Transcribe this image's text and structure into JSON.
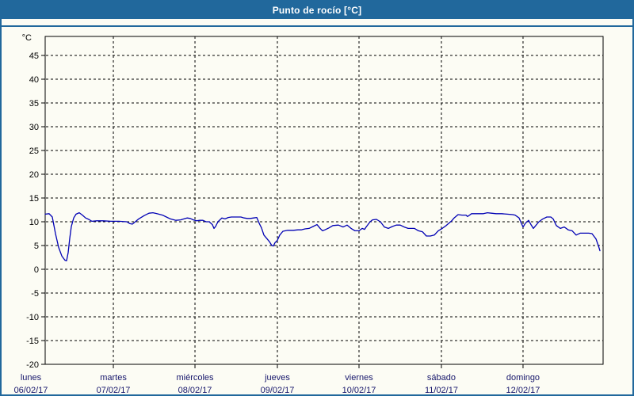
{
  "title_bar": {
    "title": "Punto de rocío [°C]"
  },
  "colors": {
    "accent_blue": "#21689c",
    "line_blue": "#0000b4",
    "grid_color": "#000000",
    "box_color": "#000000",
    "y_label_color": "#000000",
    "x_label_color": "#16166b",
    "title_text": "#ffffff",
    "page_bg": "#fcfcf4"
  },
  "chart_data": {
    "type": "line",
    "title": "Punto de rocío [°C]",
    "ylabel": "°C",
    "unit_label": "°C",
    "ylim": [
      -20,
      49
    ],
    "yticks": [
      45,
      40,
      35,
      30,
      25,
      20,
      15,
      10,
      5,
      0,
      -5,
      -10,
      -15,
      -20
    ],
    "grid": "dashed",
    "legend_position": "none",
    "x_ticks": [
      {
        "pos": -0.0256,
        "weekday": "lunes",
        "date": "06/02/17",
        "gridline": false
      },
      {
        "pos": 0.1222,
        "weekday": "martes",
        "date": "07/02/17",
        "gridline": true
      },
      {
        "pos": 0.2685,
        "weekday": "miércoles",
        "date": "08/02/17",
        "gridline": true
      },
      {
        "pos": 0.4162,
        "weekday": "jueves",
        "date": "09/02/17",
        "gridline": true
      },
      {
        "pos": 0.5625,
        "weekday": "viernes",
        "date": "10/02/17",
        "gridline": true
      },
      {
        "pos": 0.7102,
        "weekday": "sábado",
        "date": "11/02/17",
        "gridline": true
      },
      {
        "pos": 0.8565,
        "weekday": "domingo",
        "date": "12/02/17",
        "gridline": true
      }
    ],
    "series": [
      {
        "name": "Punto de rocío",
        "color": "#0000b4",
        "points": [
          [
            0.0,
            11.6
          ],
          [
            0.0071,
            11.7
          ],
          [
            0.0128,
            11.0
          ],
          [
            0.0185,
            7.5
          ],
          [
            0.0241,
            4.6
          ],
          [
            0.0298,
            2.8
          ],
          [
            0.0355,
            1.9
          ],
          [
            0.0384,
            1.8
          ],
          [
            0.0412,
            3.5
          ],
          [
            0.044,
            6.5
          ],
          [
            0.0469,
            9.0
          ],
          [
            0.0511,
            10.8
          ],
          [
            0.0554,
            11.6
          ],
          [
            0.0611,
            11.9
          ],
          [
            0.0668,
            11.4
          ],
          [
            0.0724,
            10.8
          ],
          [
            0.0781,
            10.5
          ],
          [
            0.0838,
            10.1
          ],
          [
            0.0923,
            10.2
          ],
          [
            0.1037,
            10.2
          ],
          [
            0.1179,
            10.1
          ],
          [
            0.1321,
            10.1
          ],
          [
            0.1463,
            10.0
          ],
          [
            0.152,
            9.6
          ],
          [
            0.1563,
            9.5
          ],
          [
            0.1605,
            9.9
          ],
          [
            0.1676,
            10.6
          ],
          [
            0.1776,
            11.3
          ],
          [
            0.1861,
            11.8
          ],
          [
            0.1932,
            11.9
          ],
          [
            0.2003,
            11.7
          ],
          [
            0.2102,
            11.4
          ],
          [
            0.2173,
            11.0
          ],
          [
            0.2244,
            10.6
          ],
          [
            0.2344,
            10.3
          ],
          [
            0.2429,
            10.4
          ],
          [
            0.2486,
            10.6
          ],
          [
            0.2543,
            10.8
          ],
          [
            0.2599,
            10.7
          ],
          [
            0.2656,
            10.4
          ],
          [
            0.2713,
            10.2
          ],
          [
            0.277,
            10.3
          ],
          [
            0.2827,
            10.3
          ],
          [
            0.2884,
            10.0
          ],
          [
            0.294,
            10.0
          ],
          [
            0.2997,
            9.4
          ],
          [
            0.3026,
            8.6
          ],
          [
            0.3054,
            9.0
          ],
          [
            0.3097,
            10.0
          ],
          [
            0.3168,
            10.8
          ],
          [
            0.3224,
            10.6
          ],
          [
            0.3281,
            10.9
          ],
          [
            0.3338,
            11.0
          ],
          [
            0.3423,
            11.0
          ],
          [
            0.3509,
            11.0
          ],
          [
            0.3565,
            10.8
          ],
          [
            0.3622,
            10.7
          ],
          [
            0.3679,
            10.7
          ],
          [
            0.3736,
            10.8
          ],
          [
            0.3793,
            10.9
          ],
          [
            0.3835,
            9.7
          ],
          [
            0.3878,
            8.7
          ],
          [
            0.392,
            7.2
          ],
          [
            0.3977,
            6.4
          ],
          [
            0.402,
            5.8
          ],
          [
            0.4062,
            5.0
          ],
          [
            0.4091,
            4.9
          ],
          [
            0.4119,
            5.6
          ],
          [
            0.4162,
            6.1
          ],
          [
            0.4205,
            7.2
          ],
          [
            0.4261,
            8.0
          ],
          [
            0.4347,
            8.2
          ],
          [
            0.4446,
            8.2
          ],
          [
            0.4531,
            8.3
          ],
          [
            0.4588,
            8.3
          ],
          [
            0.4659,
            8.5
          ],
          [
            0.473,
            8.6
          ],
          [
            0.4801,
            9.0
          ],
          [
            0.4872,
            9.4
          ],
          [
            0.4929,
            8.6
          ],
          [
            0.4972,
            8.1
          ],
          [
            0.5014,
            8.3
          ],
          [
            0.5085,
            8.7
          ],
          [
            0.5156,
            9.2
          ],
          [
            0.5256,
            9.3
          ],
          [
            0.5341,
            8.9
          ],
          [
            0.5412,
            9.3
          ],
          [
            0.5483,
            8.6
          ],
          [
            0.5554,
            8.1
          ],
          [
            0.5625,
            8.1
          ],
          [
            0.5682,
            8.6
          ],
          [
            0.5724,
            8.4
          ],
          [
            0.5753,
            8.9
          ],
          [
            0.5824,
            10.0
          ],
          [
            0.5866,
            10.4
          ],
          [
            0.5937,
            10.5
          ],
          [
            0.6009,
            10.0
          ],
          [
            0.608,
            8.9
          ],
          [
            0.6151,
            8.6
          ],
          [
            0.6222,
            9.0
          ],
          [
            0.6293,
            9.3
          ],
          [
            0.6364,
            9.3
          ],
          [
            0.6435,
            8.9
          ],
          [
            0.6506,
            8.6
          ],
          [
            0.6577,
            8.6
          ],
          [
            0.6619,
            8.6
          ],
          [
            0.669,
            8.1
          ],
          [
            0.6761,
            7.9
          ],
          [
            0.6832,
            7.0
          ],
          [
            0.6903,
            7.0
          ],
          [
            0.6974,
            7.2
          ],
          [
            0.7045,
            8.1
          ],
          [
            0.7116,
            8.6
          ],
          [
            0.7188,
            9.2
          ],
          [
            0.7287,
            10.2
          ],
          [
            0.733,
            10.8
          ],
          [
            0.7401,
            11.5
          ],
          [
            0.7472,
            11.4
          ],
          [
            0.7543,
            11.4
          ],
          [
            0.7571,
            11.1
          ],
          [
            0.7642,
            11.7
          ],
          [
            0.7713,
            11.7
          ],
          [
            0.7784,
            11.7
          ],
          [
            0.7855,
            11.7
          ],
          [
            0.7926,
            11.9
          ],
          [
            0.7997,
            11.8
          ],
          [
            0.8082,
            11.7
          ],
          [
            0.8182,
            11.7
          ],
          [
            0.8281,
            11.6
          ],
          [
            0.8381,
            11.5
          ],
          [
            0.8423,
            11.4
          ],
          [
            0.8494,
            10.8
          ],
          [
            0.8523,
            10.0
          ],
          [
            0.8565,
            8.9
          ],
          [
            0.8608,
            9.7
          ],
          [
            0.8665,
            10.3
          ],
          [
            0.8707,
            9.4
          ],
          [
            0.875,
            8.6
          ],
          [
            0.8849,
            10.0
          ],
          [
            0.892,
            10.6
          ],
          [
            0.8991,
            11.0
          ],
          [
            0.9062,
            11.0
          ],
          [
            0.9105,
            10.6
          ],
          [
            0.9162,
            9.2
          ],
          [
            0.9233,
            8.6
          ],
          [
            0.9304,
            8.9
          ],
          [
            0.9375,
            8.3
          ],
          [
            0.9446,
            8.1
          ],
          [
            0.9517,
            7.2
          ],
          [
            0.9588,
            7.6
          ],
          [
            0.9673,
            7.6
          ],
          [
            0.9744,
            7.6
          ],
          [
            0.9801,
            7.5
          ],
          [
            0.9872,
            6.4
          ],
          [
            0.9915,
            5.0
          ],
          [
            0.9943,
            3.9
          ]
        ]
      }
    ]
  }
}
